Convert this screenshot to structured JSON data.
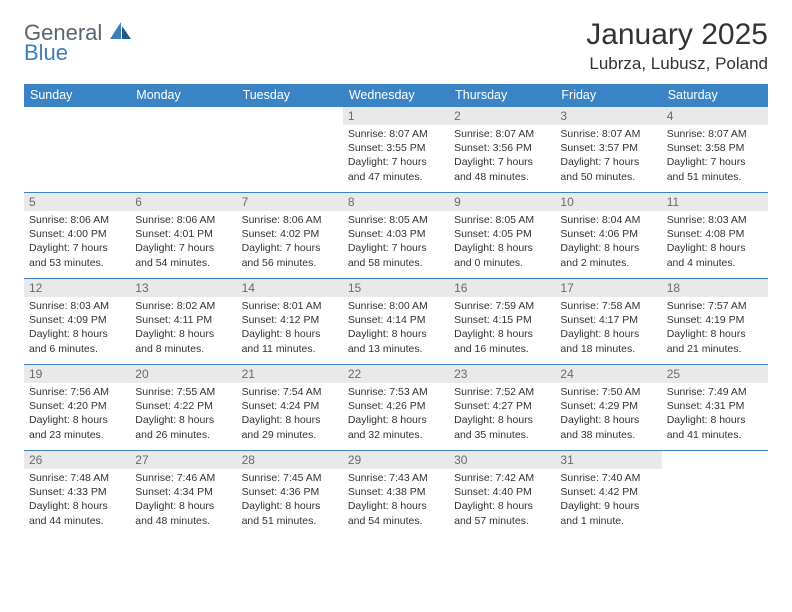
{
  "logo": {
    "line1": "General",
    "line2": "Blue",
    "gray_color": "#5a6570",
    "blue_color": "#3a7fb8"
  },
  "title": "January 2025",
  "location": "Lubrza, Lubusz, Poland",
  "colors": {
    "header_bg": "#3a83c4",
    "header_text": "#ffffff",
    "daynum_bg": "#e9e9e9",
    "daynum_text": "#6a6a6a",
    "rule": "#3a83c4",
    "body_text": "#333333"
  },
  "columns": [
    "Sunday",
    "Monday",
    "Tuesday",
    "Wednesday",
    "Thursday",
    "Friday",
    "Saturday"
  ],
  "weeks": [
    [
      {
        "day": null
      },
      {
        "day": null
      },
      {
        "day": null
      },
      {
        "day": "1",
        "sunrise": "8:07 AM",
        "sunset": "3:55 PM",
        "daylight": "7 hours and 47 minutes."
      },
      {
        "day": "2",
        "sunrise": "8:07 AM",
        "sunset": "3:56 PM",
        "daylight": "7 hours and 48 minutes."
      },
      {
        "day": "3",
        "sunrise": "8:07 AM",
        "sunset": "3:57 PM",
        "daylight": "7 hours and 50 minutes."
      },
      {
        "day": "4",
        "sunrise": "8:07 AM",
        "sunset": "3:58 PM",
        "daylight": "7 hours and 51 minutes."
      }
    ],
    [
      {
        "day": "5",
        "sunrise": "8:06 AM",
        "sunset": "4:00 PM",
        "daylight": "7 hours and 53 minutes."
      },
      {
        "day": "6",
        "sunrise": "8:06 AM",
        "sunset": "4:01 PM",
        "daylight": "7 hours and 54 minutes."
      },
      {
        "day": "7",
        "sunrise": "8:06 AM",
        "sunset": "4:02 PM",
        "daylight": "7 hours and 56 minutes."
      },
      {
        "day": "8",
        "sunrise": "8:05 AM",
        "sunset": "4:03 PM",
        "daylight": "7 hours and 58 minutes."
      },
      {
        "day": "9",
        "sunrise": "8:05 AM",
        "sunset": "4:05 PM",
        "daylight": "8 hours and 0 minutes."
      },
      {
        "day": "10",
        "sunrise": "8:04 AM",
        "sunset": "4:06 PM",
        "daylight": "8 hours and 2 minutes."
      },
      {
        "day": "11",
        "sunrise": "8:03 AM",
        "sunset": "4:08 PM",
        "daylight": "8 hours and 4 minutes."
      }
    ],
    [
      {
        "day": "12",
        "sunrise": "8:03 AM",
        "sunset": "4:09 PM",
        "daylight": "8 hours and 6 minutes."
      },
      {
        "day": "13",
        "sunrise": "8:02 AM",
        "sunset": "4:11 PM",
        "daylight": "8 hours and 8 minutes."
      },
      {
        "day": "14",
        "sunrise": "8:01 AM",
        "sunset": "4:12 PM",
        "daylight": "8 hours and 11 minutes."
      },
      {
        "day": "15",
        "sunrise": "8:00 AM",
        "sunset": "4:14 PM",
        "daylight": "8 hours and 13 minutes."
      },
      {
        "day": "16",
        "sunrise": "7:59 AM",
        "sunset": "4:15 PM",
        "daylight": "8 hours and 16 minutes."
      },
      {
        "day": "17",
        "sunrise": "7:58 AM",
        "sunset": "4:17 PM",
        "daylight": "8 hours and 18 minutes."
      },
      {
        "day": "18",
        "sunrise": "7:57 AM",
        "sunset": "4:19 PM",
        "daylight": "8 hours and 21 minutes."
      }
    ],
    [
      {
        "day": "19",
        "sunrise": "7:56 AM",
        "sunset": "4:20 PM",
        "daylight": "8 hours and 23 minutes."
      },
      {
        "day": "20",
        "sunrise": "7:55 AM",
        "sunset": "4:22 PM",
        "daylight": "8 hours and 26 minutes."
      },
      {
        "day": "21",
        "sunrise": "7:54 AM",
        "sunset": "4:24 PM",
        "daylight": "8 hours and 29 minutes."
      },
      {
        "day": "22",
        "sunrise": "7:53 AM",
        "sunset": "4:26 PM",
        "daylight": "8 hours and 32 minutes."
      },
      {
        "day": "23",
        "sunrise": "7:52 AM",
        "sunset": "4:27 PM",
        "daylight": "8 hours and 35 minutes."
      },
      {
        "day": "24",
        "sunrise": "7:50 AM",
        "sunset": "4:29 PM",
        "daylight": "8 hours and 38 minutes."
      },
      {
        "day": "25",
        "sunrise": "7:49 AM",
        "sunset": "4:31 PM",
        "daylight": "8 hours and 41 minutes."
      }
    ],
    [
      {
        "day": "26",
        "sunrise": "7:48 AM",
        "sunset": "4:33 PM",
        "daylight": "8 hours and 44 minutes."
      },
      {
        "day": "27",
        "sunrise": "7:46 AM",
        "sunset": "4:34 PM",
        "daylight": "8 hours and 48 minutes."
      },
      {
        "day": "28",
        "sunrise": "7:45 AM",
        "sunset": "4:36 PM",
        "daylight": "8 hours and 51 minutes."
      },
      {
        "day": "29",
        "sunrise": "7:43 AM",
        "sunset": "4:38 PM",
        "daylight": "8 hours and 54 minutes."
      },
      {
        "day": "30",
        "sunrise": "7:42 AM",
        "sunset": "4:40 PM",
        "daylight": "8 hours and 57 minutes."
      },
      {
        "day": "31",
        "sunrise": "7:40 AM",
        "sunset": "4:42 PM",
        "daylight": "9 hours and 1 minute."
      },
      {
        "day": null
      }
    ]
  ],
  "labels": {
    "sunrise_prefix": "Sunrise: ",
    "sunset_prefix": "Sunset: ",
    "daylight_prefix": "Daylight: "
  }
}
